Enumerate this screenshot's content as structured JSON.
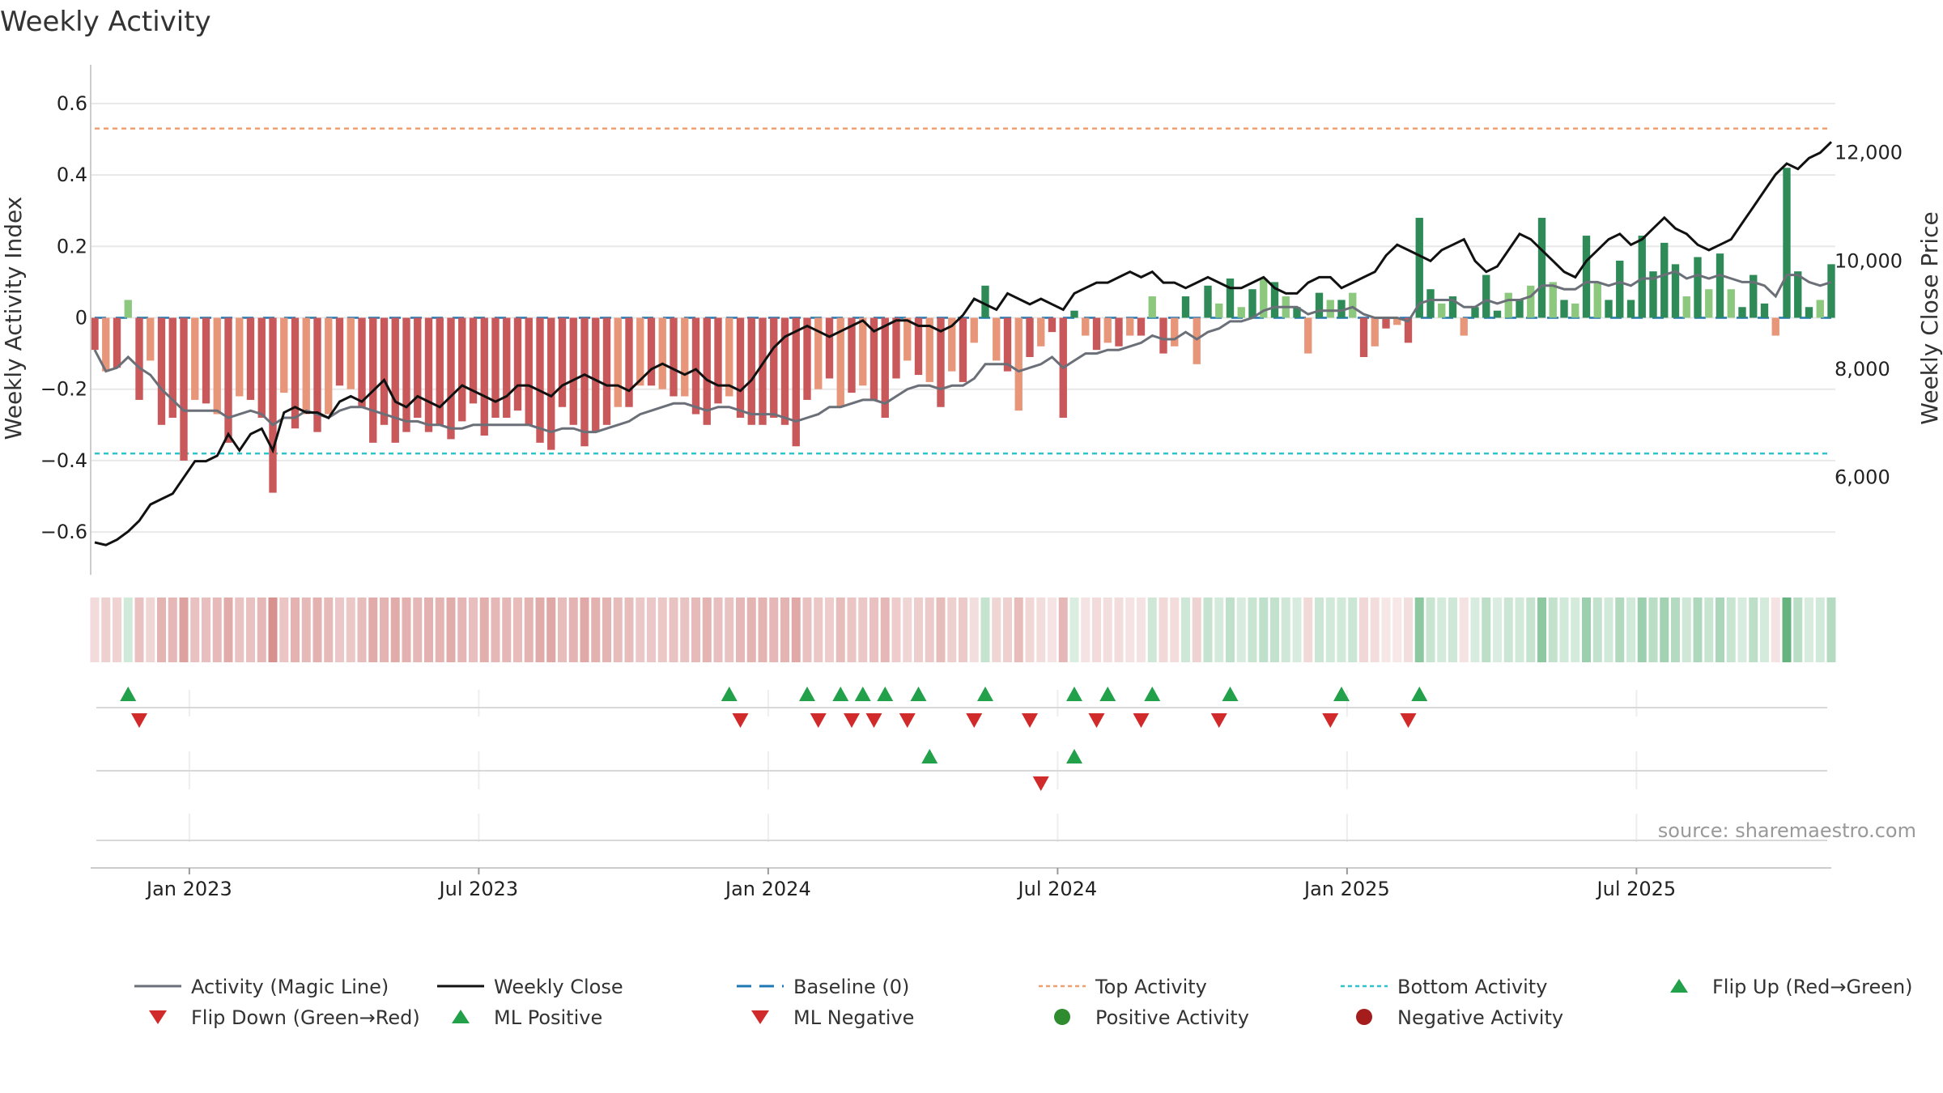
{
  "chart_data": {
    "type": "bar",
    "title": "Weekly Activity",
    "ylabel_left": "Weekly Activity Index",
    "ylabel_right": "Weekly Close Price",
    "ylim_left": [
      -0.72,
      0.72
    ],
    "ylim_right": [
      4200,
      13700
    ],
    "y_ticks_left": [
      0.6,
      0.4,
      0.2,
      0,
      -0.2,
      -0.4,
      -0.6
    ],
    "y_tick_labels_left": [
      "0.6",
      "0.4",
      "0.2",
      "0",
      "−0.2",
      "−0.4",
      "−0.6"
    ],
    "y_ticks_right": [
      12000,
      10000,
      8000,
      6000
    ],
    "y_tick_labels_right": [
      "12,000",
      "10,000",
      "8,000",
      "6,000"
    ],
    "x_ticks": [
      8.5,
      34.5,
      60.5,
      86.5,
      112.5,
      138.5
    ],
    "x_tick_labels": [
      "Jan 2023",
      "Jul 2023",
      "Jan 2024",
      "Jul 2024",
      "Jan 2025",
      "Jul 2025"
    ],
    "week_count": 157,
    "top_activity": 0.53,
    "bottom_activity": -0.38,
    "baseline": 0,
    "activity": [
      -0.09,
      -0.15,
      -0.14,
      0.05,
      -0.23,
      -0.12,
      -0.3,
      -0.28,
      -0.4,
      -0.23,
      -0.24,
      -0.27,
      -0.35,
      -0.22,
      -0.23,
      -0.28,
      -0.49,
      -0.21,
      -0.31,
      -0.27,
      -0.32,
      -0.27,
      -0.19,
      -0.2,
      -0.25,
      -0.35,
      -0.3,
      -0.35,
      -0.32,
      -0.28,
      -0.32,
      -0.3,
      -0.34,
      -0.29,
      -0.24,
      -0.33,
      -0.28,
      -0.28,
      -0.26,
      -0.3,
      -0.35,
      -0.37,
      -0.25,
      -0.3,
      -0.36,
      -0.32,
      -0.3,
      -0.25,
      -0.25,
      -0.19,
      -0.19,
      -0.2,
      -0.22,
      -0.22,
      -0.27,
      -0.3,
      -0.24,
      -0.22,
      -0.28,
      -0.3,
      -0.3,
      -0.28,
      -0.3,
      -0.36,
      -0.23,
      -0.2,
      -0.17,
      -0.25,
      -0.21,
      -0.19,
      -0.23,
      -0.28,
      -0.17,
      -0.12,
      -0.16,
      -0.18,
      -0.25,
      -0.15,
      -0.18,
      -0.07,
      0.09,
      -0.12,
      -0.15,
      -0.26,
      -0.11,
      -0.08,
      -0.04,
      -0.28,
      0.02,
      -0.05,
      -0.09,
      -0.07,
      -0.08,
      -0.05,
      -0.05,
      0.06,
      -0.1,
      -0.08,
      0.06,
      -0.13,
      0.09,
      0.04,
      0.11,
      0.03,
      0.08,
      0.11,
      0.1,
      0.06,
      0.03,
      -0.1,
      0.07,
      0.05,
      0.05,
      0.07,
      -0.11,
      -0.08,
      -0.03,
      -0.02,
      -0.07,
      0.28,
      0.08,
      0.04,
      0.06,
      -0.05,
      0.03,
      0.12,
      0.02,
      0.07,
      0.05,
      0.09,
      0.28,
      0.1,
      0.05,
      0.04,
      0.23,
      0.1,
      0.05,
      0.16,
      0.05,
      0.23,
      0.13,
      0.21,
      0.15,
      0.06,
      0.17,
      0.08,
      0.18,
      0.08,
      0.03,
      0.12,
      0.04,
      -0.05,
      0.42,
      0.13,
      0.03,
      0.05,
      0.15
    ],
    "magic_line": [
      -0.09,
      -0.15,
      -0.14,
      -0.11,
      -0.14,
      -0.16,
      -0.2,
      -0.23,
      -0.26,
      -0.26,
      -0.26,
      -0.26,
      -0.28,
      -0.27,
      -0.26,
      -0.27,
      -0.3,
      -0.28,
      -0.28,
      -0.26,
      -0.27,
      -0.28,
      -0.26,
      -0.25,
      -0.25,
      -0.26,
      -0.27,
      -0.28,
      -0.29,
      -0.29,
      -0.3,
      -0.3,
      -0.31,
      -0.31,
      -0.3,
      -0.3,
      -0.3,
      -0.3,
      -0.3,
      -0.3,
      -0.31,
      -0.32,
      -0.31,
      -0.31,
      -0.32,
      -0.32,
      -0.31,
      -0.3,
      -0.29,
      -0.27,
      -0.26,
      -0.25,
      -0.24,
      -0.24,
      -0.25,
      -0.26,
      -0.25,
      -0.25,
      -0.26,
      -0.27,
      -0.27,
      -0.27,
      -0.28,
      -0.29,
      -0.28,
      -0.27,
      -0.25,
      -0.25,
      -0.24,
      -0.23,
      -0.23,
      -0.24,
      -0.22,
      -0.2,
      -0.19,
      -0.19,
      -0.2,
      -0.19,
      -0.19,
      -0.17,
      -0.13,
      -0.13,
      -0.13,
      -0.15,
      -0.14,
      -0.13,
      -0.11,
      -0.14,
      -0.12,
      -0.1,
      -0.1,
      -0.09,
      -0.09,
      -0.08,
      -0.07,
      -0.05,
      -0.06,
      -0.06,
      -0.04,
      -0.06,
      -0.04,
      -0.03,
      -0.01,
      -0.01,
      0.0,
      0.02,
      0.03,
      0.03,
      0.03,
      0.01,
      0.02,
      0.02,
      0.02,
      0.03,
      0.01,
      0.0,
      0.0,
      0.0,
      -0.01,
      0.04,
      0.05,
      0.05,
      0.05,
      0.03,
      0.03,
      0.05,
      0.04,
      0.05,
      0.05,
      0.06,
      0.09,
      0.09,
      0.08,
      0.08,
      0.1,
      0.1,
      0.09,
      0.1,
      0.09,
      0.11,
      0.11,
      0.12,
      0.13,
      0.11,
      0.12,
      0.11,
      0.12,
      0.11,
      0.1,
      0.1,
      0.09,
      0.06,
      0.12,
      0.12,
      0.1,
      0.09,
      0.1
    ],
    "weekly_close": [
      4800,
      4750,
      4850,
      5000,
      5200,
      5500,
      5600,
      5700,
      6000,
      6300,
      6300,
      6400,
      6800,
      6500,
      6800,
      6900,
      6500,
      7200,
      7300,
      7200,
      7200,
      7100,
      7400,
      7500,
      7400,
      7600,
      7800,
      7400,
      7300,
      7500,
      7400,
      7300,
      7500,
      7700,
      7600,
      7500,
      7400,
      7500,
      7700,
      7700,
      7600,
      7500,
      7700,
      7800,
      7900,
      7800,
      7700,
      7700,
      7600,
      7800,
      8000,
      8100,
      8000,
      7900,
      8000,
      7800,
      7700,
      7700,
      7600,
      7800,
      8100,
      8400,
      8600,
      8700,
      8800,
      8700,
      8600,
      8700,
      8800,
      8900,
      8700,
      8800,
      8900,
      8900,
      8800,
      8800,
      8700,
      8800,
      9000,
      9300,
      9200,
      9100,
      9400,
      9300,
      9200,
      9300,
      9200,
      9100,
      9400,
      9500,
      9600,
      9600,
      9700,
      9800,
      9700,
      9800,
      9600,
      9600,
      9500,
      9600,
      9700,
      9600,
      9500,
      9500,
      9600,
      9700,
      9500,
      9400,
      9400,
      9600,
      9700,
      9700,
      9500,
      9600,
      9700,
      9800,
      10100,
      10300,
      10200,
      10100,
      10000,
      10200,
      10300,
      10400,
      10000,
      9800,
      9900,
      10200,
      10500,
      10400,
      10200,
      10000,
      9800,
      9700,
      10000,
      10200,
      10400,
      10500,
      10300,
      10400,
      10600,
      10800,
      10600,
      10500,
      10300,
      10200,
      10300,
      10400,
      10700,
      11000,
      11300,
      11600,
      11800,
      11700,
      11900,
      12000,
      12200
    ],
    "flip_up_row1": [
      3,
      57,
      64,
      67,
      69,
      71,
      74,
      80,
      88,
      91,
      95,
      102,
      112,
      119
    ],
    "flip_down_row1": [
      4,
      58,
      65,
      68,
      70,
      73,
      79,
      84,
      90,
      94,
      101,
      111,
      118
    ],
    "ml_positive_row2": [
      75,
      88
    ],
    "ml_negative_row2": [
      85
    ],
    "annotation": "source: sharemaestro.com",
    "legend_position": "bottom",
    "legend": [
      "Activity (Magic Line)",
      "Weekly Close",
      "Baseline (0)",
      "Top Activity",
      "Bottom Activity",
      "Flip Up (Red→Green)",
      "Flip Down (Green→Red)",
      "ML Positive",
      "ML Negative",
      "Positive Activity",
      "Negative Activity"
    ],
    "colors": {
      "positive_strong": "#2e8b57",
      "positive_weak": "#8cc97f",
      "negative_strong": "#c9585a",
      "negative_weak": "#e8967a",
      "magic_line": "#6b6f78",
      "weekly_close": "#111111",
      "baseline": "#1f77b4",
      "top_activity": "#f0a070",
      "bottom_activity": "#2ec4cc",
      "flip_up": "#22a04a",
      "flip_down": "#d02a2a",
      "positive_dot": "#2e8b2e",
      "negative_dot": "#a51c1c",
      "grid": "#e8e8e8",
      "axis": "#cccccc"
    }
  }
}
